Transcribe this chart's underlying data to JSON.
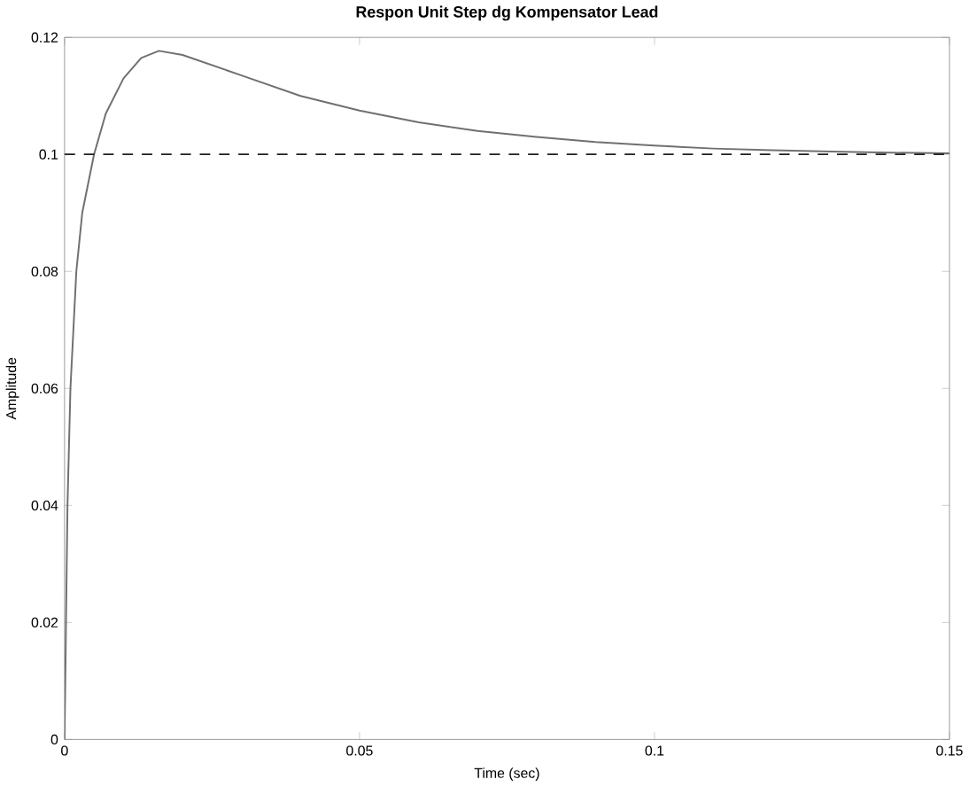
{
  "chart_data": {
    "type": "line",
    "title": "Respon Unit Step dg Kompensator Lead",
    "xlabel": "Time (sec)",
    "ylabel": "Amplitude",
    "x": [
      0,
      0.0005,
      0.001,
      0.002,
      0.003,
      0.005,
      0.007,
      0.01,
      0.013,
      0.016,
      0.02,
      0.03,
      0.04,
      0.05,
      0.06,
      0.07,
      0.08,
      0.09,
      0.1,
      0.11,
      0.12,
      0.13,
      0.14,
      0.15
    ],
    "series": [
      {
        "color": "#707070",
        "values": [
          0,
          0.04,
          0.06,
          0.08,
          0.09,
          0.1,
          0.107,
          0.113,
          0.1165,
          0.1177,
          0.117,
          0.1135,
          0.11,
          0.1075,
          0.1055,
          0.104,
          0.103,
          0.1021,
          0.1015,
          0.101,
          0.1007,
          0.1005,
          0.1003,
          0.1002
        ]
      }
    ],
    "xlim": [
      0,
      0.15
    ],
    "ylim": [
      0,
      0.12
    ],
    "xticks": [
      0,
      0.05,
      0.1,
      0.15
    ],
    "yticks": [
      0,
      0.02,
      0.04,
      0.06,
      0.08,
      0.1,
      0.12
    ],
    "ref_lines": [
      {
        "axis": "y",
        "value": 0.1,
        "color": "#202020",
        "line_style": "dashed"
      }
    ],
    "grid": false,
    "marker": "none",
    "line_style": "solid"
  }
}
